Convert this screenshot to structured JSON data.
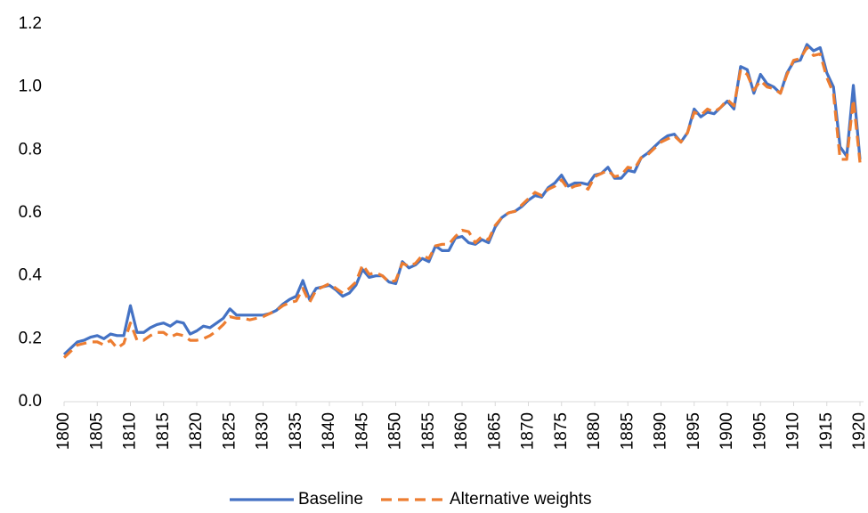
{
  "chart_data": {
    "type": "line",
    "x": [
      1800,
      1801,
      1802,
      1803,
      1804,
      1805,
      1806,
      1807,
      1808,
      1809,
      1810,
      1811,
      1812,
      1813,
      1814,
      1815,
      1816,
      1817,
      1818,
      1819,
      1820,
      1821,
      1822,
      1823,
      1824,
      1825,
      1826,
      1827,
      1828,
      1829,
      1830,
      1831,
      1832,
      1833,
      1834,
      1835,
      1836,
      1837,
      1838,
      1839,
      1840,
      1841,
      1842,
      1843,
      1844,
      1845,
      1846,
      1847,
      1848,
      1849,
      1850,
      1851,
      1852,
      1853,
      1854,
      1855,
      1856,
      1857,
      1858,
      1859,
      1860,
      1861,
      1862,
      1863,
      1864,
      1865,
      1866,
      1867,
      1868,
      1869,
      1870,
      1871,
      1872,
      1873,
      1874,
      1875,
      1876,
      1877,
      1878,
      1879,
      1880,
      1881,
      1882,
      1883,
      1884,
      1885,
      1886,
      1887,
      1888,
      1889,
      1890,
      1891,
      1892,
      1893,
      1894,
      1895,
      1896,
      1897,
      1898,
      1899,
      1900,
      1901,
      1902,
      1903,
      1904,
      1905,
      1906,
      1907,
      1908,
      1909,
      1910,
      1911,
      1912,
      1913,
      1914,
      1915,
      1916,
      1917,
      1918,
      1919,
      1920
    ],
    "series": [
      {
        "name": "Baseline",
        "color": "#4472c4",
        "dash": false,
        "values": [
          0.15,
          0.17,
          0.19,
          0.195,
          0.205,
          0.21,
          0.2,
          0.215,
          0.21,
          0.21,
          0.305,
          0.22,
          0.22,
          0.235,
          0.245,
          0.25,
          0.24,
          0.255,
          0.25,
          0.215,
          0.225,
          0.24,
          0.235,
          0.25,
          0.265,
          0.295,
          0.275,
          0.275,
          0.275,
          0.275,
          0.275,
          0.28,
          0.29,
          0.31,
          0.325,
          0.335,
          0.385,
          0.325,
          0.36,
          0.365,
          0.37,
          0.355,
          0.335,
          0.345,
          0.37,
          0.42,
          0.395,
          0.4,
          0.4,
          0.38,
          0.375,
          0.445,
          0.425,
          0.435,
          0.455,
          0.445,
          0.495,
          0.48,
          0.48,
          0.52,
          0.525,
          0.505,
          0.5,
          0.515,
          0.505,
          0.555,
          0.585,
          0.6,
          0.605,
          0.62,
          0.64,
          0.655,
          0.65,
          0.68,
          0.695,
          0.72,
          0.685,
          0.695,
          0.695,
          0.69,
          0.72,
          0.725,
          0.745,
          0.71,
          0.71,
          0.735,
          0.73,
          0.775,
          0.79,
          0.81,
          0.83,
          0.845,
          0.85,
          0.825,
          0.855,
          0.93,
          0.905,
          0.92,
          0.915,
          0.935,
          0.955,
          0.93,
          1.065,
          1.055,
          0.98,
          1.04,
          1.01,
          1.0,
          0.98,
          1.045,
          1.08,
          1.085,
          1.135,
          1.115,
          1.125,
          1.045,
          1.0,
          0.81,
          0.78,
          1.005,
          0.77
        ]
      },
      {
        "name": "Alternative weights",
        "color": "#ed7d31",
        "dash": true,
        "values": [
          0.14,
          0.16,
          0.18,
          0.185,
          0.19,
          0.19,
          0.18,
          0.195,
          0.17,
          0.185,
          0.25,
          0.195,
          0.195,
          0.21,
          0.22,
          0.22,
          0.205,
          0.215,
          0.21,
          0.195,
          0.195,
          0.2,
          0.21,
          0.225,
          0.245,
          0.27,
          0.265,
          0.265,
          0.26,
          0.265,
          0.27,
          0.28,
          0.29,
          0.305,
          0.315,
          0.32,
          0.36,
          0.315,
          0.355,
          0.365,
          0.375,
          0.36,
          0.345,
          0.36,
          0.38,
          0.435,
          0.405,
          0.41,
          0.4,
          0.38,
          0.385,
          0.44,
          0.43,
          0.44,
          0.465,
          0.455,
          0.495,
          0.5,
          0.5,
          0.525,
          0.545,
          0.54,
          0.505,
          0.525,
          0.515,
          0.56,
          0.585,
          0.6,
          0.605,
          0.625,
          0.645,
          0.665,
          0.655,
          0.675,
          0.685,
          0.705,
          0.675,
          0.685,
          0.69,
          0.675,
          0.715,
          0.725,
          0.735,
          0.715,
          0.72,
          0.745,
          0.74,
          0.775,
          0.785,
          0.805,
          0.825,
          0.835,
          0.845,
          0.825,
          0.855,
          0.92,
          0.91,
          0.93,
          0.92,
          0.935,
          0.96,
          0.94,
          1.055,
          1.04,
          0.99,
          1.02,
          1.0,
          0.995,
          0.98,
          1.04,
          1.085,
          1.09,
          1.125,
          1.1,
          1.105,
          1.03,
          0.98,
          0.77,
          0.77,
          0.96,
          0.76
        ]
      }
    ],
    "xlim": [
      1800,
      1920
    ],
    "xticks": [
      1800,
      1805,
      1810,
      1815,
      1820,
      1825,
      1830,
      1835,
      1840,
      1845,
      1850,
      1855,
      1860,
      1865,
      1870,
      1875,
      1880,
      1885,
      1890,
      1895,
      1900,
      1905,
      1910,
      1915,
      1920
    ],
    "ylim": [
      0,
      1.2
    ],
    "yticks": [
      {
        "value": 0,
        "label": "0.0"
      },
      0.2,
      0.4,
      0.6,
      0.8,
      {
        "value": 1,
        "label": "1.0"
      },
      {
        "value": 1.2,
        "label": "1.2"
      }
    ],
    "grid": false,
    "legend": "bottom"
  }
}
